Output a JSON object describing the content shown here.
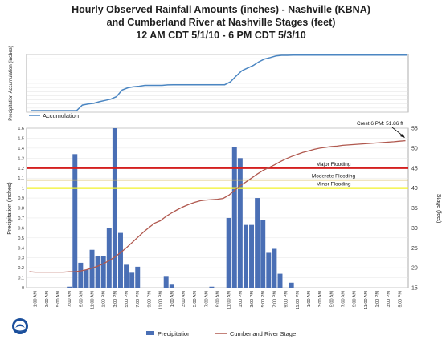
{
  "title": {
    "line1": "Hourly Observed Rainfall Amounts (inches) - Nashville (KBNA)",
    "line2": "and Cumberland River at Nashville Stages (feet)",
    "line3": "12 AM CDT 5/1/10 - 6 PM CDT 5/3/10"
  },
  "colors": {
    "bars": "#4a6fb5",
    "stage_line": "#b0584e",
    "accum_line": "#4b86c2",
    "major": "#d42020",
    "moderate": "#d9b850",
    "minor": "#f2f229"
  },
  "chart_data": [
    {
      "type": "line",
      "name": "accumulation-panel",
      "ylabel": "Precipitation Accumulation (inches)",
      "legend": [
        "Accumulation"
      ],
      "legend_position": "bottom-left",
      "series": [
        {
          "name": "Accumulation",
          "values": [
            0,
            0,
            0,
            0,
            0,
            0,
            0,
            0,
            0,
            1.34,
            1.59,
            1.77,
            2.15,
            2.47,
            2.79,
            3.39,
            4.99,
            5.54,
            5.77,
            5.92,
            6.13,
            6.13,
            6.13,
            6.13,
            6.24,
            6.27,
            6.27,
            6.27,
            6.28,
            6.28,
            6.28,
            6.28,
            6.28,
            6.28,
            6.28,
            6.98,
            8.39,
            9.69,
            10.32,
            10.95,
            11.85,
            12.53,
            12.88,
            13.27,
            13.41,
            13.41,
            13.46,
            13.46,
            13.46,
            13.46,
            13.46,
            13.46,
            13.46,
            13.46,
            13.46,
            13.46,
            13.46,
            13.46,
            13.46,
            13.46,
            13.46,
            13.46,
            13.46,
            13.46,
            13.46,
            13.46,
            13.46
          ]
        }
      ],
      "grid": true
    },
    {
      "type": "bar",
      "name": "precipitation-and-stage",
      "x_tick_labels": [
        "1:00 AM",
        "3:00 AM",
        "5:00 AM",
        "7:00 AM",
        "9:00 AM",
        "11:00 AM",
        "1:00 PM",
        "3:00 PM",
        "5:00 PM",
        "7:00 PM",
        "9:00 PM",
        "11:00 PM",
        "1:00 AM",
        "3:00 AM",
        "5:00 AM",
        "7:00 AM",
        "9:00 AM",
        "11:00 AM",
        "1:00 PM",
        "3:00 PM",
        "5:00 PM",
        "7:00 PM",
        "9:00 PM",
        "11:00 PM",
        "1:00 AM",
        "3:00 AM",
        "5:00 AM",
        "7:00 AM",
        "9:00 AM",
        "11:00 AM",
        "1:00 PM",
        "3:00 PM",
        "5:00 PM"
      ],
      "ylabel": "Precipitation (inches)",
      "y2label": "Stage (feet)",
      "ylim": [
        0,
        1.6
      ],
      "yticks": [
        "0",
        "0.1",
        "0.2",
        "0.3",
        "0.4",
        "0.5",
        "0.6",
        "0.7",
        "0.8",
        "0.9",
        "1",
        "1.1",
        "1.2",
        "1.3",
        "1.4",
        "1.5",
        "1.6"
      ],
      "y2lim": [
        15,
        55
      ],
      "y2ticks": [
        "15",
        "20",
        "25",
        "30",
        "35",
        "40",
        "45",
        "50",
        "55"
      ],
      "series": [
        {
          "name": "Precipitation",
          "axis": "left",
          "values": [
            0,
            0,
            0,
            0,
            0,
            0,
            0,
            0.01,
            1.34,
            0.25,
            0.18,
            0.38,
            0.32,
            0.32,
            0.6,
            1.6,
            0.55,
            0.23,
            0.15,
            0.21,
            0,
            0,
            0,
            0,
            0.11,
            0.03,
            0,
            0,
            0,
            0,
            0,
            0,
            0.01,
            0,
            0,
            0.7,
            1.41,
            1.3,
            0.63,
            0.63,
            0.9,
            0.68,
            0.35,
            0.39,
            0.14,
            0,
            0.05,
            0,
            0,
            0,
            0,
            0,
            0,
            0,
            0,
            0,
            0,
            0,
            0,
            0,
            0,
            0,
            0,
            0,
            0,
            0,
            0
          ]
        },
        {
          "name": "Cumberland River Stage",
          "axis": "right",
          "values": [
            19,
            18.9,
            18.9,
            18.9,
            18.9,
            18.9,
            18.9,
            19,
            19,
            19.2,
            19.5,
            19.9,
            20.4,
            21,
            21.8,
            22.7,
            23.8,
            25,
            26.3,
            27.6,
            28.9,
            30.1,
            31.2,
            31.8,
            32.9,
            33.8,
            34.6,
            35.3,
            35.9,
            36.4,
            36.8,
            37,
            37.1,
            37.2,
            37.4,
            38.2,
            39.4,
            40.6,
            41.5,
            42.5,
            43.5,
            44.4,
            45.1,
            45.8,
            46.6,
            47.3,
            47.9,
            48.4,
            48.9,
            49.3,
            49.7,
            50,
            50.2,
            50.4,
            50.5,
            50.7,
            50.8,
            50.9,
            51,
            51.1,
            51.2,
            51.3,
            51.4,
            51.5,
            51.6,
            51.75,
            51.86
          ]
        }
      ],
      "flood_levels": [
        {
          "label": "Major Flooding",
          "stage": 45
        },
        {
          "label": "Moderate Flooding",
          "stage": 42
        },
        {
          "label": "Minor Flooding",
          "stage": 40
        }
      ],
      "annotation": "Crest 6 PM: 51.86 ft",
      "legend": [
        "Precipitation",
        "Cumberland River Stage"
      ],
      "legend_position": "bottom",
      "grid": true
    }
  ]
}
